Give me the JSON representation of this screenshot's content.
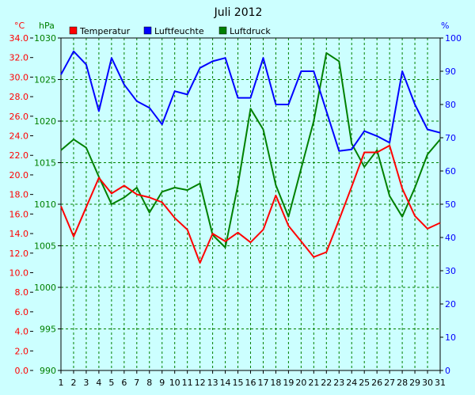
{
  "chart_data": {
    "type": "line",
    "title": "Juli 2012",
    "units": {
      "temperature": "°C",
      "pressure": "hPa",
      "humidity": "%"
    },
    "legend": [
      {
        "name": "Temperatur",
        "color": "#FF0000"
      },
      {
        "name": "Luftfeuchte",
        "color": "#0000FF"
      },
      {
        "name": "Luftdruck",
        "color": "#008000"
      }
    ],
    "x": [
      1,
      2,
      3,
      4,
      5,
      6,
      7,
      8,
      9,
      10,
      11,
      12,
      13,
      14,
      15,
      16,
      17,
      18,
      19,
      20,
      21,
      22,
      23,
      24,
      25,
      26,
      27,
      28,
      29,
      30,
      31
    ],
    "x_tick_labels": [
      "1",
      "2",
      "3",
      "4",
      "5",
      "6",
      "7",
      "8",
      "9",
      "10",
      "11",
      "12",
      "13",
      "14",
      "15",
      "16",
      "17",
      "18",
      "19",
      "20",
      "21",
      "22",
      "23",
      "24",
      "25",
      "26",
      "27",
      "28",
      "29",
      "30",
      "31"
    ],
    "axes": {
      "temperature": {
        "range": [
          0,
          34
        ],
        "ticks": [
          "0.0",
          "2.0",
          "4.0",
          "6.0",
          "8.0",
          "10.0",
          "12.0",
          "14.0",
          "16.0",
          "18.0",
          "20.0",
          "22.0",
          "24.0",
          "26.0",
          "28.0",
          "30.0",
          "32.0",
          "34.0"
        ],
        "color": "#FF0000",
        "position": "left"
      },
      "pressure": {
        "range": [
          990,
          1030
        ],
        "ticks": [
          "990",
          "995",
          "1000",
          "1005",
          "1010",
          "1015",
          "1020",
          "1025",
          "1030"
        ],
        "color": "#008000",
        "position": "left"
      },
      "humidity": {
        "range": [
          0,
          100
        ],
        "ticks": [
          "0",
          "10",
          "20",
          "30",
          "40",
          "50",
          "60",
          "70",
          "80",
          "90",
          "100"
        ],
        "color": "#0000FF",
        "position": "right"
      }
    },
    "series": [
      {
        "name": "Temperatur",
        "axis": "temperature",
        "color": "#FF0000",
        "values": [
          16.8,
          13.7,
          16.7,
          19.7,
          18.1,
          18.9,
          18.0,
          17.7,
          17.2,
          15.6,
          14.4,
          11.0,
          14.0,
          13.2,
          14.1,
          13.1,
          14.4,
          17.9,
          14.8,
          13.2,
          11.6,
          12.1,
          15.4,
          18.8,
          22.3,
          22.3,
          23.0,
          18.6,
          15.8,
          14.5,
          15.1
        ]
      },
      {
        "name": "Luftfeuchte",
        "axis": "humidity",
        "color": "#0000FF",
        "values": [
          89,
          96,
          92,
          78,
          94,
          86,
          81,
          79,
          74,
          84,
          83,
          91,
          93,
          94,
          82,
          82,
          94,
          80,
          80,
          90,
          90,
          78,
          66,
          66.5,
          72,
          70.5,
          68.5,
          90,
          80,
          72.5,
          71.5
        ]
      },
      {
        "name": "Luftdruck",
        "axis": "pressure",
        "color": "#008000",
        "values": [
          1016.5,
          1017.8,
          1016.8,
          1013.3,
          1010.0,
          1010.8,
          1012.0,
          1009.0,
          1011.5,
          1012.0,
          1011.7,
          1012.5,
          1006.3,
          1004.8,
          1012.3,
          1021.5,
          1019.0,
          1012.3,
          1008.5,
          1014.3,
          1020.0,
          1028.2,
          1027.2,
          1017.3,
          1014.5,
          1016.5,
          1011.0,
          1008.5,
          1012.0,
          1016.0,
          1017.8
        ]
      }
    ],
    "grid": true
  }
}
